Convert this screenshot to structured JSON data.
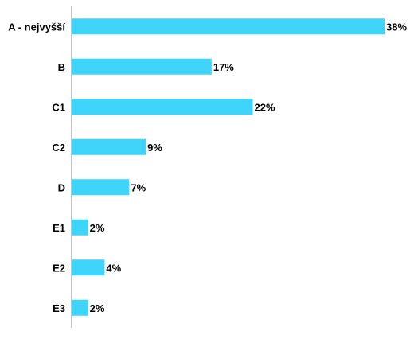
{
  "chart_data": {
    "type": "bar",
    "orientation": "horizontal",
    "title": "",
    "xlabel": "",
    "ylabel": "",
    "categories": [
      "A - nejvyšší",
      "B",
      "C1",
      "C2",
      "D",
      "E1",
      "E2",
      "E3"
    ],
    "values": [
      38,
      17,
      22,
      9,
      7,
      2,
      4,
      2
    ],
    "value_labels": [
      "38%",
      "17%",
      "22%",
      "9%",
      "7%",
      "2%",
      "4%",
      "2%"
    ],
    "unit": "%",
    "xlim": [
      0,
      38
    ],
    "grid": false,
    "legend": "none",
    "bar_color": "#3fd5fb"
  }
}
